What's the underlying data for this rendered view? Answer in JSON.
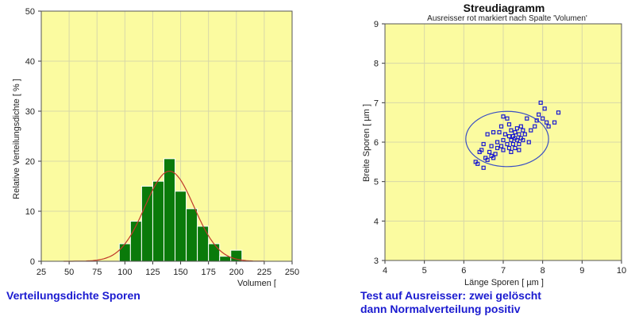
{
  "charts": {
    "left": {
      "ylabel": "Relative Verteilungsdichte [ % ]",
      "xlabel": "Volumen [",
      "caption": "Verteilungsdichte Sporen"
    },
    "right": {
      "title": "Streudiagramm",
      "subtitle": "Ausreisser rot markiert nach Spalte 'Volumen'",
      "xlabel": "Länge Sporen [ µm ]",
      "ylabel": "Breite Sporen [ µm ]",
      "caption_line1": "Test auf Ausreisser: zwei gelöscht",
      "caption_line2": "dann Normalverteilung positiv"
    }
  },
  "chart_data": [
    {
      "type": "bar",
      "xlabel": "Volumen [",
      "ylabel": "Relative Verteilungsdichte [ % ]",
      "xlim": [
        25,
        250
      ],
      "ylim": [
        0,
        50
      ],
      "xticks": [
        25,
        50,
        75,
        100,
        125,
        150,
        175,
        200,
        225,
        250
      ],
      "yticks": [
        0,
        10,
        20,
        30,
        40,
        50
      ],
      "bin_width": 10,
      "bars": [
        {
          "x": 100,
          "value": 3.5
        },
        {
          "x": 110,
          "value": 8
        },
        {
          "x": 120,
          "value": 15
        },
        {
          "x": 130,
          "value": 16
        },
        {
          "x": 140,
          "value": 20.5
        },
        {
          "x": 150,
          "value": 14
        },
        {
          "x": 160,
          "value": 10.5
        },
        {
          "x": 170,
          "value": 7
        },
        {
          "x": 180,
          "value": 3.5
        },
        {
          "x": 190,
          "value": 1
        },
        {
          "x": 200,
          "value": 2.2
        }
      ],
      "fit_curve": {
        "kind": "normal",
        "mean": 140,
        "sd": 22,
        "peak": 18,
        "color": "#c0392b"
      },
      "bar_color": "#0a7a0a",
      "background": "#fbfba0",
      "grid": true
    },
    {
      "type": "scatter",
      "title": "Streudiagramm",
      "subtitle": "Ausreisser rot markiert nach Spalte 'Volumen'",
      "xlabel": "Länge Sporen [ µm ]",
      "ylabel": "Breite Sporen [ µm ]",
      "xlim": [
        4,
        10
      ],
      "ylim": [
        3,
        9
      ],
      "xticks": [
        4,
        5,
        6,
        7,
        8,
        9,
        10
      ],
      "yticks": [
        3,
        4,
        5,
        6,
        7,
        8,
        9
      ],
      "point_color": "#1a1ad0",
      "background": "#fbfba0",
      "grid": true,
      "points": [
        [
          6.3,
          5.5
        ],
        [
          6.35,
          5.45
        ],
        [
          6.5,
          5.35
        ],
        [
          6.55,
          5.6
        ],
        [
          6.4,
          5.75
        ],
        [
          6.5,
          5.95
        ],
        [
          6.45,
          5.8
        ],
        [
          6.6,
          5.55
        ],
        [
          6.65,
          5.75
        ],
        [
          6.7,
          5.65
        ],
        [
          6.7,
          5.9
        ],
        [
          6.8,
          5.7
        ],
        [
          6.75,
          5.6
        ],
        [
          6.85,
          5.85
        ],
        [
          6.85,
          6.0
        ],
        [
          6.9,
          6.25
        ],
        [
          6.75,
          6.25
        ],
        [
          6.95,
          5.9
        ],
        [
          7.0,
          6.05
        ],
        [
          7.0,
          5.8
        ],
        [
          6.95,
          6.4
        ],
        [
          7.05,
          6.2
        ],
        [
          7.1,
          5.95
        ],
        [
          7.1,
          6.6
        ],
        [
          7.15,
          6.15
        ],
        [
          7.15,
          5.85
        ],
        [
          7.2,
          6.3
        ],
        [
          7.2,
          6.05
        ],
        [
          7.25,
          5.95
        ],
        [
          7.25,
          6.15
        ],
        [
          7.3,
          6.25
        ],
        [
          7.3,
          5.85
        ],
        [
          7.35,
          6.05
        ],
        [
          7.35,
          6.35
        ],
        [
          7.4,
          5.95
        ],
        [
          7.4,
          6.2
        ],
        [
          7.45,
          6.1
        ],
        [
          7.45,
          6.4
        ],
        [
          7.5,
          6.3
        ],
        [
          7.5,
          6.05
        ],
        [
          7.55,
          6.2
        ],
        [
          7.3,
          6.1
        ],
        [
          7.2,
          5.75
        ],
        [
          7.6,
          6.6
        ],
        [
          7.8,
          6.4
        ],
        [
          7.85,
          6.55
        ],
        [
          7.9,
          6.7
        ],
        [
          7.95,
          7.0
        ],
        [
          8.0,
          6.6
        ],
        [
          8.1,
          6.5
        ],
        [
          8.05,
          6.85
        ],
        [
          8.15,
          6.4
        ],
        [
          8.3,
          6.5
        ],
        [
          8.4,
          6.75
        ],
        [
          7.65,
          6.0
        ],
        [
          7.7,
          6.3
        ],
        [
          7.0,
          6.65
        ],
        [
          6.6,
          6.2
        ],
        [
          7.15,
          6.45
        ],
        [
          7.4,
          5.8
        ]
      ],
      "ellipse": {
        "cx": 7.1,
        "cy": 6.08,
        "rx": 1.05,
        "ry": 0.7,
        "color": "#3a4fc4"
      }
    }
  ]
}
